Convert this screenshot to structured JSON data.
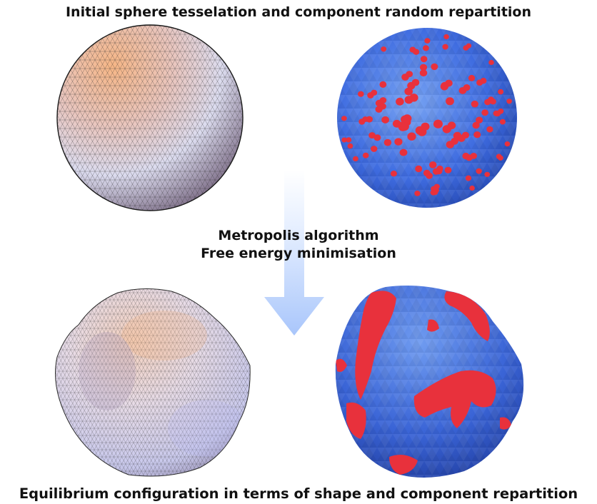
{
  "captions": {
    "top": "Initial sphere tesselation and component random repartition",
    "middle_line1": "Metropolis algorithm",
    "middle_line2": "Free energy minimisation",
    "bottom": "Equilibrium configuration in terms of shape and component repartition"
  },
  "colors": {
    "membrane_blue": "#3a66d9",
    "component_red": "#e8313c",
    "arrow_light": "#e6efff",
    "arrow_dark": "#a9c6fb",
    "mesh_line": "#222222"
  }
}
